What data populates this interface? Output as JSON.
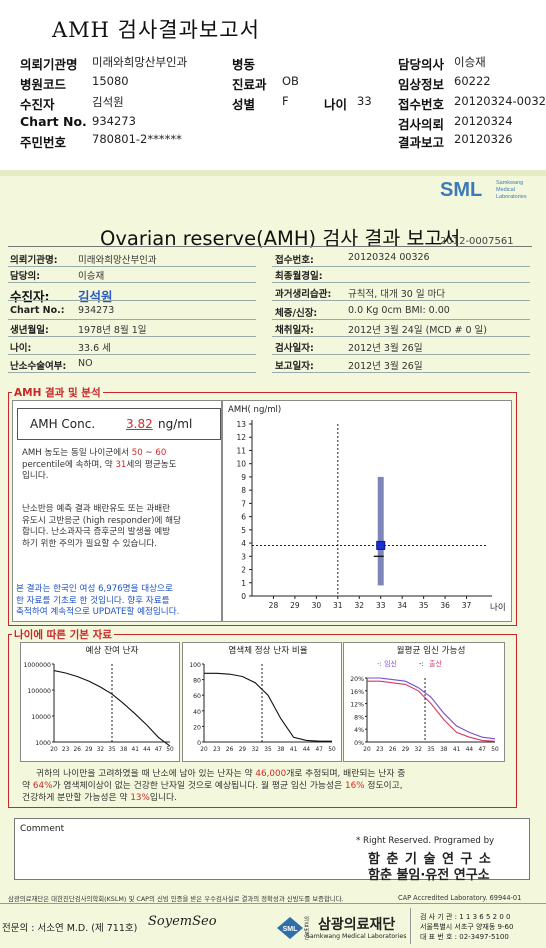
{
  "header": {
    "title": "AMH 검사결과보고서",
    "rows": [
      {
        "l1": "의뢰기관명",
        "v1": "미래와희망산부인과",
        "l2": "병동",
        "v2": "",
        "l3": "담당의사",
        "v3": "이승재"
      },
      {
        "l1": "병원코드",
        "v1": "15080",
        "l2": "진료과",
        "v2": "OB",
        "l3": "임상정보",
        "v3": "60222"
      },
      {
        "l1": "수진자",
        "v1": "김석원",
        "l2": "성별",
        "v2": "F",
        "l2b": "나이",
        "v2b": "33",
        "l3": "접수번호",
        "v3": "20120324-00326"
      },
      {
        "l1": "Chart No.",
        "v1": "934273",
        "l2": "",
        "v2": "",
        "l3": "검사의뢰",
        "v3": "20120324"
      },
      {
        "l1": "주민번호",
        "v1": "780801-2******",
        "l2": "",
        "v2": "",
        "l3": "결과보고",
        "v3": "20120326"
      }
    ]
  },
  "logo": {
    "text": "SML",
    "sub1": "Samkwang",
    "sub2": "Medical",
    "sub3": "Laboratories"
  },
  "report": {
    "title": "Ovarian reserve(AMH) 검사 결과 보고서",
    "number": "2012-0007561"
  },
  "patient": {
    "left": [
      {
        "label": "의뢰기관명:",
        "value": "미래와희망산부인과"
      },
      {
        "label": "담당의:",
        "value": "이승재"
      },
      {
        "label": "수진자:",
        "value": "김석원"
      },
      {
        "label": "Chart No.:",
        "value": "934273"
      },
      {
        "label": "생년월일:",
        "value": "1978년 8월 1일"
      },
      {
        "label": "나이:",
        "value": "33.6 세"
      },
      {
        "label": "난소수술여부:",
        "value": "NO"
      }
    ],
    "right": [
      {
        "label": "접수번호:",
        "value": "20120324 00326"
      },
      {
        "label": "최종월경일:",
        "value": ""
      },
      {
        "label": "과거생리습관:",
        "value": "규칙적, 대개   30 일 마다"
      },
      {
        "label": "체중/신장:",
        "value": "0.0 Kg         0cm    BMI:      0.00"
      },
      {
        "label": "채취일자:",
        "value": "2012년  3월 24일   (MCD #  0 일)"
      },
      {
        "label": "검사일자:",
        "value": "2012년  3월 26일"
      },
      {
        "label": "보고일자:",
        "value": "2012년  3월 26일"
      }
    ]
  },
  "amh_section": {
    "heading": "AMH 결과 및 분석",
    "conc_label": "AMH Conc.",
    "conc_value": "3.82",
    "conc_unit": "ng/ml",
    "para1_a": "AMH 농도는 동일 나이군에서",
    "para1_range_lo": "50",
    "para1_tilde": "~",
    "para1_range_hi": "60",
    "para1_b": "percentile에 속하며, 약",
    "para1_age": "31",
    "para1_c": "세의 평균농도",
    "para1_d": "입니다.",
    "para2": [
      "난소반응 예측 결과 배란유도 또는 과배란",
      "유도시 고반응군 (high responder)에 해당",
      "합니다. 난소과자극 증후군의 발생을 예방",
      "하기 위한 주의가 필요할 수 있습니다."
    ],
    "para3": [
      "본 결과는 한국인 여성 6,976명을 대상으로",
      "한 자료를 기초로 한 것입니다. 향후 자료를",
      "축적하여 계속적으로 UPDATE할 예정입니다."
    ]
  },
  "chart_data": [
    {
      "type": "scatter",
      "title": "",
      "ylabel": "AMH( ng/ml)",
      "xlabel": "나이",
      "xlim": [
        27,
        38
      ],
      "ylim": [
        0,
        13
      ],
      "x_ticks": [
        28,
        29,
        30,
        31,
        32,
        33,
        34,
        35,
        36,
        37
      ],
      "y_ticks": [
        0,
        1,
        2,
        3,
        4,
        5,
        6,
        7,
        8,
        9,
        10,
        11,
        12,
        13
      ],
      "range_bar": {
        "x": 33,
        "low": 0.8,
        "high": 9.0
      },
      "median_tick": {
        "x": 33,
        "y": 3.0
      },
      "point": {
        "x": 33,
        "y": 3.82
      },
      "reference": {
        "vline_x": 31,
        "hline_y": 3.82
      },
      "grid": false
    },
    {
      "type": "line",
      "title": "예상 잔여 난자",
      "y_scale": "log",
      "y_ticks": [
        "1000000",
        "100000",
        "10000",
        "1000"
      ],
      "x_ticks": [
        "20",
        "23",
        "26",
        "29",
        "32",
        "35",
        "38",
        "41",
        "44",
        "47",
        "50"
      ],
      "x": [
        20,
        23,
        26,
        29,
        32,
        35,
        38,
        41,
        44,
        47,
        50
      ],
      "values": [
        560000,
        450000,
        330000,
        220000,
        130000,
        70000,
        30000,
        12000,
        4500,
        1500,
        700
      ],
      "marker_x": 35
    },
    {
      "type": "line",
      "title": "염색체 정상 난자 비율",
      "y_ticks": [
        "100",
        "80",
        "60",
        "40",
        "20",
        "0"
      ],
      "x_ticks": [
        "20",
        "23",
        "26",
        "29",
        "32",
        "35",
        "38",
        "41",
        "44",
        "47",
        "50"
      ],
      "x": [
        20,
        23,
        26,
        29,
        32,
        35,
        38,
        41,
        44,
        47,
        50
      ],
      "values": [
        88,
        88,
        87,
        84,
        76,
        60,
        30,
        6,
        2,
        1,
        1
      ],
      "marker_x": 33.6
    },
    {
      "type": "line",
      "title": "월평균 임신 가능성",
      "legend_prefix": "-: 임신",
      "legend_sep": "-:",
      "legend_label2": "출산",
      "y_ticks": [
        "20%",
        "16%",
        "12%",
        "8%",
        "4%",
        "0%"
      ],
      "x_ticks": [
        "20",
        "23",
        "26",
        "29",
        "32",
        "35",
        "38",
        "41",
        "44",
        "47",
        "50"
      ],
      "x": [
        20,
        23,
        26,
        29,
        32,
        35,
        38,
        41,
        44,
        47,
        50
      ],
      "series": [
        {
          "name": "임신",
          "color": "#7a4fd0",
          "values": [
            20,
            20,
            19.5,
            19,
            17,
            14,
            9,
            5,
            3,
            1.5,
            1
          ]
        },
        {
          "name": "출산",
          "color": "#d33a6a",
          "values": [
            19,
            19,
            18.5,
            18,
            16,
            12,
            7,
            3,
            1.5,
            0.5,
            0.2
          ]
        }
      ],
      "marker_x": 33.6
    }
  ],
  "basic_section": {
    "heading": "나이에 따른 기본 자료",
    "line1_a": "귀하의 나이만을 고려하였을 때 난소에 남아 있는 난자는 약",
    "line1_num": "46,000",
    "line1_b": "개로 추정되며, 배란되는 난자 중",
    "line2_a": "약",
    "line2_pct": "64%",
    "line2_b": "가 염색체이상이 없는 건강한 난자일 것으로 예상됩니다. 월 평균 임신 가능성은",
    "line2_pct2": "16%",
    "line2_c": "정도이고,",
    "line3_a": "건강하게 분만할 가능성은 약",
    "line3_pct": "13%",
    "line3_b": "입니다."
  },
  "comment": {
    "label": "Comment",
    "rights": "* Right Reserved. Programed by",
    "org1": "함 춘  기 술  연 구 소",
    "org2": "함춘 불임·유전 연구소"
  },
  "footer": {
    "note": "삼광의료재단은 대한진단검사의학회(KSLM) 및 CAP의 신빙 인증을 받은 우수검사실로 결과의 정확성과 신빙도를 보증합니다.",
    "cap": "CAP  Accredited  Laboratory.  69944-01",
    "doctor": "전문의 : 서소연 M.D. (제 711호)",
    "signature": "SoyemSeo",
    "org_prefix": "의료법인",
    "org_name": "삼광의료재단",
    "org_sub": "Samkwang Medical Laboratories",
    "addr1": "검 사 기 관 : 1 1 3 6 5 2 0 0",
    "addr2": "서울특별시 서초구 양재동 9-60",
    "addr3": "대 표 번 호 : 02-3497-5100"
  }
}
